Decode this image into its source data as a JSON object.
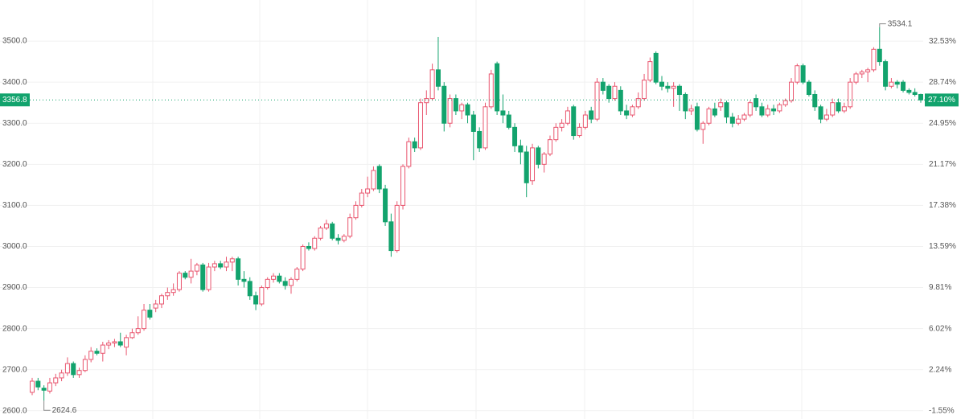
{
  "chart_data": {
    "type": "candlestick",
    "open": [
      2645,
      2672,
      2655,
      2648,
      2668,
      2680,
      2692,
      2715,
      2688,
      2698,
      2725,
      2745,
      2740,
      2760,
      2765,
      2768,
      2755,
      2778,
      2790,
      2800,
      2845,
      2850,
      2860,
      2880,
      2888,
      2895,
      2935,
      2925,
      2940,
      2955,
      2895,
      2950,
      2958,
      2950,
      2962,
      2970,
      2920,
      2915,
      2880,
      2860,
      2900,
      2920,
      2928,
      2915,
      2905,
      2920,
      2945,
      3000,
      2995,
      3020,
      3045,
      3055,
      3020,
      3015,
      3025,
      3070,
      3100,
      3130,
      3140,
      3195,
      3140,
      3060,
      2990,
      3100,
      3195,
      3255,
      3240,
      3350,
      3360,
      3430,
      3390,
      3300,
      3360,
      3330,
      3345,
      3320,
      3280,
      3240,
      3340,
      3445,
      3330,
      3320,
      3290,
      3245,
      3230,
      3160,
      3240,
      3200,
      3225,
      3260,
      3290,
      3300,
      3340,
      3270,
      3290,
      3330,
      3310,
      3400,
      3390,
      3360,
      3380,
      3330,
      3320,
      3340,
      3360,
      3405,
      3470,
      3400,
      3390,
      3385,
      3390,
      3370,
      3330,
      3340,
      3285,
      3300,
      3335,
      3340,
      3350,
      3315,
      3300,
      3310,
      3320,
      3360,
      3340,
      3320,
      3335,
      3330,
      3345,
      3355,
      3400,
      3440,
      3400,
      3370,
      3340,
      3310,
      3320,
      3350,
      3330,
      3340,
      3400,
      3420,
      3425,
      3430,
      3480,
      3450,
      3390,
      3400,
      3400,
      3380,
      3375,
      3370
    ],
    "high": [
      2680,
      2680,
      2662,
      2680,
      2690,
      2700,
      2730,
      2720,
      2705,
      2735,
      2755,
      2752,
      2768,
      2772,
      2775,
      2790,
      2785,
      2800,
      2830,
      2860,
      2860,
      2870,
      2885,
      2900,
      2910,
      2940,
      2940,
      2970,
      2960,
      2960,
      2960,
      2965,
      2965,
      2975,
      2975,
      2975,
      2940,
      2925,
      2890,
      2905,
      2925,
      2935,
      2935,
      2925,
      2925,
      2950,
      3005,
      3010,
      3025,
      3050,
      3065,
      3060,
      3030,
      3030,
      3080,
      3110,
      3140,
      3170,
      3195,
      3200,
      3150,
      3080,
      3110,
      3200,
      3265,
      3265,
      3360,
      3380,
      3445,
      3510,
      3400,
      3370,
      3370,
      3350,
      3350,
      3330,
      3290,
      3350,
      3430,
      3450,
      3370,
      3330,
      3300,
      3260,
      3245,
      3250,
      3245,
      3230,
      3270,
      3300,
      3310,
      3340,
      3345,
      3300,
      3330,
      3340,
      3410,
      3410,
      3395,
      3400,
      3390,
      3345,
      3345,
      3375,
      3420,
      3460,
      3475,
      3415,
      3400,
      3400,
      3395,
      3375,
      3345,
      3350,
      3305,
      3340,
      3350,
      3360,
      3355,
      3325,
      3320,
      3325,
      3355,
      3370,
      3350,
      3345,
      3345,
      3350,
      3360,
      3410,
      3445,
      3445,
      3405,
      3380,
      3345,
      3335,
      3360,
      3360,
      3350,
      3410,
      3425,
      3430,
      3435,
      3485,
      3534.1,
      3455,
      3410,
      3405,
      3405,
      3385,
      3385,
      3372
    ],
    "low": [
      2638,
      2650,
      2624.6,
      2642,
      2660,
      2672,
      2685,
      2680,
      2680,
      2694,
      2718,
      2735,
      2720,
      2750,
      2755,
      2755,
      2735,
      2775,
      2785,
      2795,
      2822,
      2840,
      2850,
      2870,
      2880,
      2890,
      2920,
      2910,
      2930,
      2890,
      2890,
      2940,
      2945,
      2940,
      2940,
      2905,
      2900,
      2870,
      2845,
      2855,
      2895,
      2912,
      2910,
      2895,
      2885,
      2915,
      2940,
      2990,
      2990,
      3015,
      3040,
      3015,
      3005,
      3010,
      3020,
      3065,
      3095,
      3120,
      3135,
      3130,
      3050,
      2975,
      2985,
      3090,
      3190,
      3230,
      3235,
      3320,
      3355,
      3380,
      3280,
      3290,
      3320,
      3310,
      3300,
      3210,
      3230,
      3235,
      3335,
      3320,
      3300,
      3285,
      3230,
      3200,
      3120,
      3150,
      3190,
      3180,
      3220,
      3255,
      3280,
      3295,
      3260,
      3265,
      3285,
      3300,
      3305,
      3370,
      3350,
      3355,
      3320,
      3310,
      3315,
      3335,
      3355,
      3400,
      3395,
      3380,
      3375,
      3340,
      3330,
      3310,
      3320,
      3280,
      3250,
      3295,
      3315,
      3330,
      3300,
      3290,
      3295,
      3305,
      3315,
      3330,
      3315,
      3315,
      3320,
      3325,
      3340,
      3350,
      3395,
      3395,
      3365,
      3330,
      3300,
      3305,
      3315,
      3325,
      3325,
      3335,
      3395,
      3410,
      3400,
      3425,
      3440,
      3380,
      3385,
      3385,
      3375,
      3370,
      3365,
      3350
    ],
    "close": [
      2672,
      2658,
      2650,
      2668,
      2680,
      2692,
      2715,
      2688,
      2698,
      2725,
      2745,
      2740,
      2760,
      2765,
      2768,
      2760,
      2778,
      2790,
      2800,
      2845,
      2828,
      2860,
      2880,
      2888,
      2895,
      2935,
      2925,
      2940,
      2955,
      2895,
      2950,
      2958,
      2950,
      2962,
      2970,
      2920,
      2915,
      2880,
      2860,
      2900,
      2920,
      2928,
      2915,
      2905,
      2920,
      2945,
      3000,
      2995,
      3020,
      3045,
      3055,
      3020,
      3015,
      3025,
      3070,
      3100,
      3130,
      3140,
      3185,
      3140,
      3060,
      2990,
      3100,
      3195,
      3255,
      3240,
      3350,
      3360,
      3430,
      3390,
      3300,
      3360,
      3330,
      3345,
      3320,
      3280,
      3240,
      3340,
      3420,
      3330,
      3320,
      3290,
      3245,
      3230,
      3155,
      3240,
      3200,
      3225,
      3260,
      3290,
      3300,
      3330,
      3270,
      3290,
      3320,
      3310,
      3400,
      3380,
      3360,
      3390,
      3330,
      3320,
      3340,
      3360,
      3405,
      3450,
      3400,
      3390,
      3385,
      3390,
      3370,
      3330,
      3335,
      3285,
      3300,
      3335,
      3320,
      3350,
      3315,
      3300,
      3310,
      3320,
      3350,
      3340,
      3320,
      3335,
      3330,
      3345,
      3355,
      3400,
      3440,
      3400,
      3370,
      3340,
      3310,
      3320,
      3350,
      3330,
      3340,
      3400,
      3420,
      3425,
      3430,
      3480,
      3450,
      3390,
      3400,
      3395,
      3380,
      3375,
      3370,
      3356.8
    ],
    "up_color": "#e9566f",
    "down_color": "#12a36d",
    "ylim": [
      2580,
      3600
    ],
    "yticks": [
      {
        "value": 2600,
        "label": "2600.0"
      },
      {
        "value": 2700,
        "label": "2700.0"
      },
      {
        "value": 2800,
        "label": "2800.0"
      },
      {
        "value": 2900,
        "label": "2900.0"
      },
      {
        "value": 3000,
        "label": "3000.0"
      },
      {
        "value": 3100,
        "label": "3100.0"
      },
      {
        "value": 3200,
        "label": "3200.0"
      },
      {
        "value": 3300,
        "label": "3300.0"
      },
      {
        "value": 3400,
        "label": "3400.0"
      },
      {
        "value": 3500,
        "label": "3500.0"
      }
    ],
    "y2lim": [
      -2.31,
      36.32
    ],
    "y2ticks": [
      {
        "value": -1.55,
        "label": "-1.55%"
      },
      {
        "value": 2.24,
        "label": "2.24%"
      },
      {
        "value": 6.02,
        "label": "6.02%"
      },
      {
        "value": 9.81,
        "label": "9.81%"
      },
      {
        "value": 13.59,
        "label": "13.59%"
      },
      {
        "value": 17.38,
        "label": "17.38%"
      },
      {
        "value": 21.17,
        "label": "21.17%"
      },
      {
        "value": 24.95,
        "label": "24.95%"
      },
      {
        "value": 28.74,
        "label": "28.74%"
      },
      {
        "value": 32.53,
        "label": "32.53%"
      }
    ],
    "last_percent": {
      "value": 27.1,
      "label": "27.10%"
    },
    "grid": true
  }
}
